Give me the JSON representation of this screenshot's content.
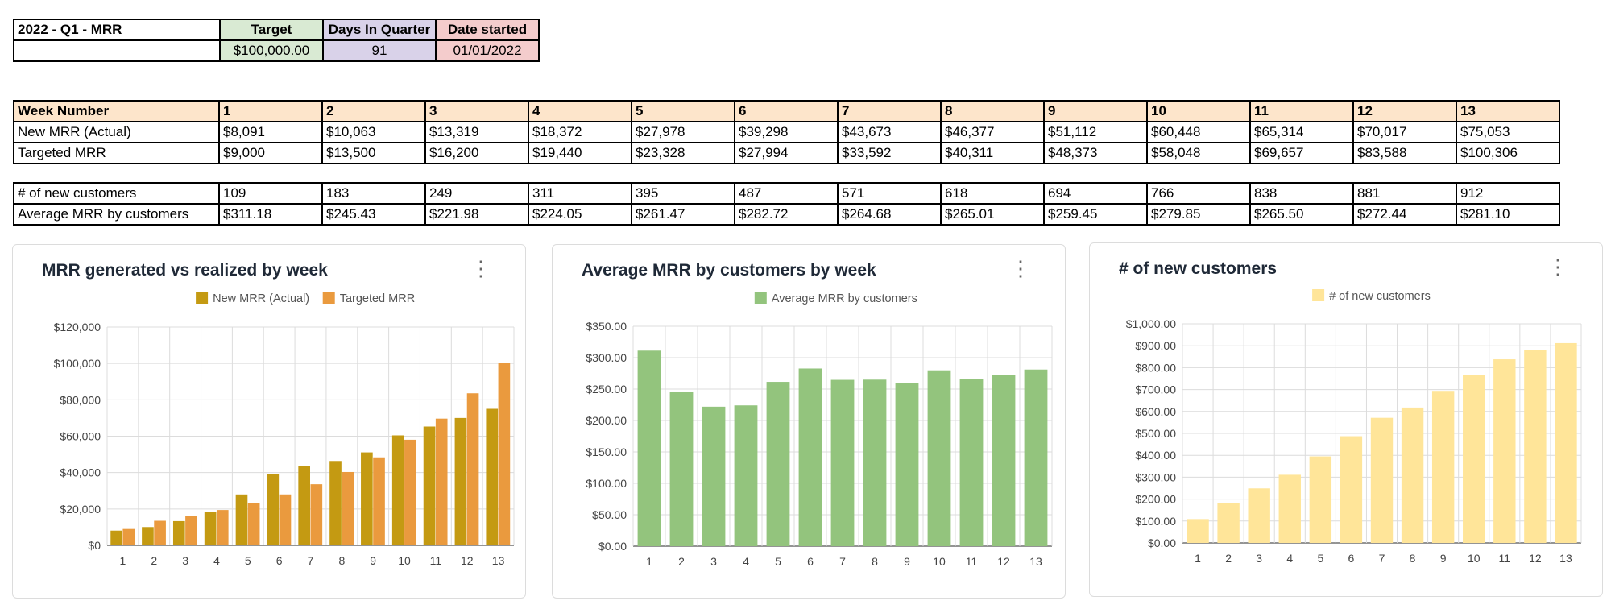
{
  "summary": {
    "name_label": "2022 - Q1 - MRR",
    "target_label": "Target",
    "target_value": "$100,000.00",
    "days_label": "Days In Quarter",
    "days_value": "91",
    "date_label": "Date started",
    "date_value": "01/01/2022",
    "colors": {
      "target": "#d9ead3",
      "days": "#d9d2e9",
      "date": "#f4cccc"
    }
  },
  "weekly": {
    "header_label": "Week Number",
    "weeks": [
      "1",
      "2",
      "3",
      "4",
      "5",
      "6",
      "7",
      "8",
      "9",
      "10",
      "11",
      "12",
      "13"
    ],
    "rows": [
      {
        "label": "New MRR (Actual)",
        "cells": [
          "$8,091",
          "$10,063",
          "$13,319",
          "$18,372",
          "$27,978",
          "$39,298",
          "$43,673",
          "$46,377",
          "$51,112",
          "$60,448",
          "$65,314",
          "$70,017",
          "$75,053"
        ]
      },
      {
        "label": "Targeted MRR",
        "cells": [
          "$9,000",
          "$13,500",
          "$16,200",
          "$19,440",
          "$23,328",
          "$27,994",
          "$33,592",
          "$40,311",
          "$48,373",
          "$58,048",
          "$69,657",
          "$83,588",
          "$100,306"
        ]
      }
    ],
    "header_color": "#fde5cb"
  },
  "customers": {
    "rows": [
      {
        "label": "# of new customers",
        "cells": [
          "109",
          "183",
          "249",
          "311",
          "395",
          "487",
          "571",
          "618",
          "694",
          "766",
          "838",
          "881",
          "912"
        ]
      },
      {
        "label": "Average MRR by customers",
        "cells": [
          "$311.18",
          "$245.43",
          "$221.98",
          "$224.05",
          "$261.47",
          "$282.72",
          "$264.68",
          "$265.01",
          "$259.45",
          "$279.85",
          "$265.50",
          "$272.44",
          "$281.10"
        ]
      }
    ]
  },
  "chart_data": [
    {
      "type": "bar",
      "title": "MRR generated vs realized by week",
      "categories": [
        "1",
        "2",
        "3",
        "4",
        "5",
        "6",
        "7",
        "8",
        "9",
        "10",
        "11",
        "12",
        "13"
      ],
      "series": [
        {
          "name": "New MRR (Actual)",
          "color": "#c49a12",
          "values": [
            8091,
            10063,
            13319,
            18372,
            27978,
            39298,
            43673,
            46377,
            51112,
            60448,
            65314,
            70017,
            75053
          ]
        },
        {
          "name": "Targeted MRR",
          "color": "#ea9a3e",
          "values": [
            9000,
            13500,
            16200,
            19440,
            23328,
            27994,
            33592,
            40311,
            48373,
            58048,
            69657,
            83588,
            100306
          ]
        }
      ],
      "ylim": [
        0,
        120000
      ],
      "yticks": [
        0,
        20000,
        40000,
        60000,
        80000,
        100000,
        120000
      ],
      "ytick_labels": [
        "$0",
        "$20,000",
        "$40,000",
        "$60,000",
        "$80,000",
        "$100,000",
        "$120,000"
      ],
      "legend": "top",
      "grid": true
    },
    {
      "type": "bar",
      "title": "Average MRR by customers by week",
      "categories": [
        "1",
        "2",
        "3",
        "4",
        "5",
        "6",
        "7",
        "8",
        "9",
        "10",
        "11",
        "12",
        "13"
      ],
      "series": [
        {
          "name": "Average MRR by customers",
          "color": "#93c47d",
          "values": [
            311.18,
            245.43,
            221.98,
            224.05,
            261.47,
            282.72,
            264.68,
            265.01,
            259.45,
            279.85,
            265.5,
            272.44,
            281.1
          ]
        }
      ],
      "ylim": [
        0,
        350
      ],
      "yticks": [
        0,
        50,
        100,
        150,
        200,
        250,
        300,
        350
      ],
      "ytick_labels": [
        "$0.00",
        "$50.00",
        "$100.00",
        "$150.00",
        "$200.00",
        "$250.00",
        "$300.00",
        "$350.00"
      ],
      "legend": "top",
      "grid": true
    },
    {
      "type": "bar",
      "title": "# of new customers",
      "categories": [
        "1",
        "2",
        "3",
        "4",
        "5",
        "6",
        "7",
        "8",
        "9",
        "10",
        "11",
        "12",
        "13"
      ],
      "series": [
        {
          "name": "# of new customers",
          "color": "#ffe599",
          "values": [
            109,
            183,
            249,
            311,
            395,
            487,
            571,
            618,
            694,
            766,
            838,
            881,
            912
          ]
        }
      ],
      "ylim": [
        0,
        1000
      ],
      "yticks": [
        0,
        100,
        200,
        300,
        400,
        500,
        600,
        700,
        800,
        900,
        1000
      ],
      "ytick_labels": [
        "$0.00",
        "$100.00",
        "$200.00",
        "$300.00",
        "$400.00",
        "$500.00",
        "$600.00",
        "$700.00",
        "$800.00",
        "$900.00",
        "$1,000.00"
      ],
      "legend": "top",
      "grid": true
    }
  ]
}
